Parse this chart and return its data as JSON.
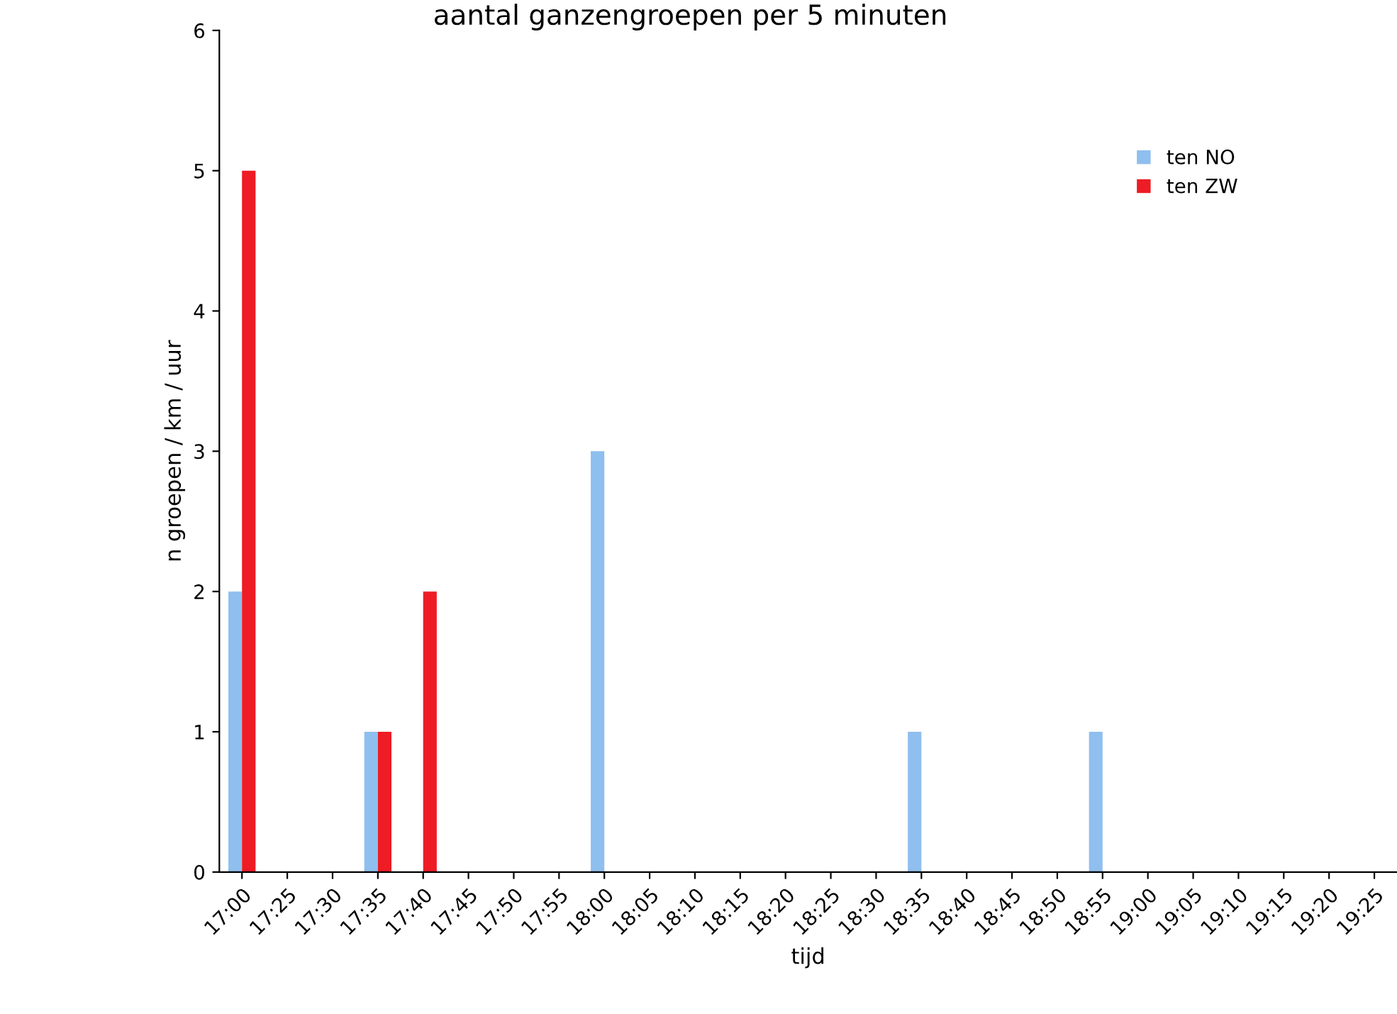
{
  "chart_data": {
    "type": "bar",
    "title": "aantal ganzengroepen per 5 minuten",
    "xlabel": "tijd",
    "ylabel": "n groepen / km / uur",
    "categories": [
      "17:00",
      "17:25",
      "17:30",
      "17:35",
      "17:40",
      "17:45",
      "17:50",
      "17:55",
      "18:00",
      "18:05",
      "18:10",
      "18:15",
      "18:20",
      "18:25",
      "18:30",
      "18:35",
      "18:40",
      "18:45",
      "18:50",
      "18:55",
      "19:00",
      "19:05",
      "19:10",
      "19:15",
      "19:20",
      "19:25"
    ],
    "series": [
      {
        "name": "ten NO",
        "color": "#8fbfee",
        "values": [
          2,
          0,
          0,
          1,
          0,
          0,
          0,
          0,
          3,
          0,
          0,
          0,
          0,
          0,
          0,
          1,
          0,
          0,
          0,
          1,
          0,
          0,
          0,
          0,
          0,
          0
        ]
      },
      {
        "name": "ten ZW",
        "color": "#ee1c24",
        "values": [
          5,
          0,
          0,
          1,
          2,
          0,
          0,
          0,
          0,
          0,
          0,
          0,
          0,
          0,
          0,
          0,
          0,
          0,
          0,
          0,
          0,
          0,
          0,
          0,
          0,
          0
        ]
      }
    ],
    "ylim": [
      0,
      6
    ],
    "yticks": [
      0,
      1,
      2,
      3,
      4,
      5,
      6
    ],
    "grid": false,
    "legend": "top right"
  }
}
